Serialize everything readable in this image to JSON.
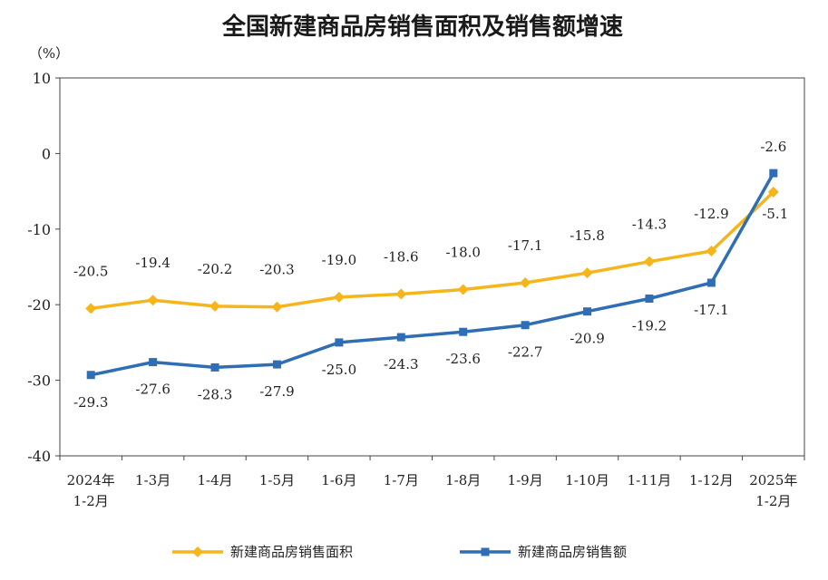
{
  "chart_data": {
    "type": "line",
    "title": "全国新建商品房销售面积及销售额增速",
    "unit_label": "（%）",
    "ylim": [
      -40,
      10
    ],
    "yticks": [
      "10",
      "0",
      "-10",
      "-20",
      "-30",
      "-40"
    ],
    "categories": [
      [
        "2024年",
        "1-2月"
      ],
      [
        "1-3月"
      ],
      [
        "1-4月"
      ],
      [
        "1-5月"
      ],
      [
        "1-6月"
      ],
      [
        "1-7月"
      ],
      [
        "1-8月"
      ],
      [
        "1-9月"
      ],
      [
        "1-10月"
      ],
      [
        "1-11月"
      ],
      [
        "1-12月"
      ],
      [
        "2025年",
        "1-2月"
      ]
    ],
    "grid": false,
    "legend_position": "bottom",
    "series": [
      {
        "name": "新建商品房销售面积",
        "color": "#F5B51B",
        "marker": "diamond",
        "values": [
          -20.5,
          -19.4,
          -20.2,
          -20.3,
          -19.0,
          -18.6,
          -18.0,
          -17.1,
          -15.8,
          -14.3,
          -12.9,
          -5.1
        ],
        "labels": [
          "-20.5",
          "-19.4",
          "-20.2",
          "-20.3",
          "-19.0",
          "-18.6",
          "-18.0",
          "-17.1",
          "-15.8",
          "-14.3",
          "-12.9",
          "-5.1"
        ]
      },
      {
        "name": "新建商品房销售额",
        "color": "#2F6DB5",
        "marker": "square",
        "values": [
          -29.3,
          -27.6,
          -28.3,
          -27.9,
          -25.0,
          -24.3,
          -23.6,
          -22.7,
          -20.9,
          -19.2,
          -17.1,
          -2.6
        ],
        "labels": [
          "-29.3",
          "-27.6",
          "-28.3",
          "-27.9",
          "-25.0",
          "-24.3",
          "-23.6",
          "-22.7",
          "-20.9",
          "-19.2",
          "-17.1",
          "-2.6"
        ]
      }
    ]
  }
}
